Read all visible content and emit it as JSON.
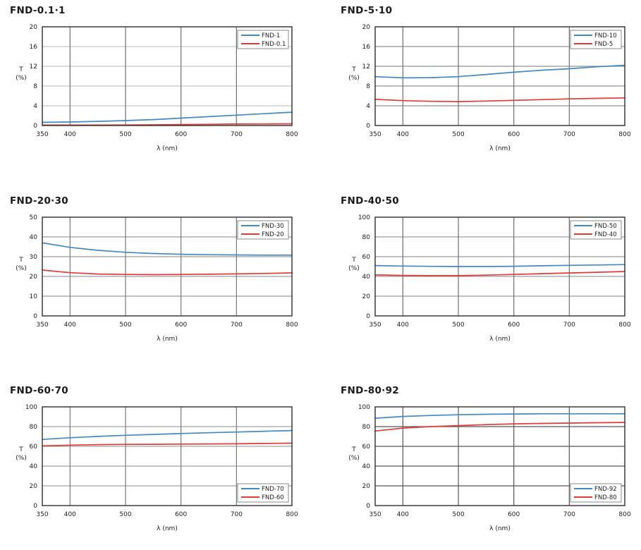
{
  "page": {
    "background": "#ffffff"
  },
  "style": {
    "frame_color": "#3a3a3a",
    "legend_border_color": "#8a8a8a",
    "legend_bg": "#ffffff",
    "blue": "#4488c0",
    "red": "#e03a3a"
  },
  "chart_data": [
    {
      "type": "line",
      "title": "FND-0.1·1",
      "xlabel": "λ (nm)",
      "ylabel": [
        "T",
        "(%)"
      ],
      "xlim": [
        350,
        800
      ],
      "xticks": [
        350,
        400,
        500,
        600,
        700,
        800
      ],
      "ylim": [
        0,
        20
      ],
      "yticks": [
        0,
        4,
        8,
        12,
        16,
        20
      ],
      "grid_color_h": "#c8c8c8",
      "grid_color_v": "#6f6f6f",
      "legend_position": "top-right",
      "x": [
        350,
        400,
        450,
        500,
        550,
        600,
        650,
        700,
        750,
        800
      ],
      "series": [
        {
          "name": "FND-1",
          "color": "#4488c0",
          "y": [
            0.65,
            0.72,
            0.85,
            1.0,
            1.2,
            1.5,
            1.8,
            2.1,
            2.4,
            2.7
          ]
        },
        {
          "name": "FND-0.1",
          "color": "#e03a3a",
          "y": [
            0.08,
            0.08,
            0.1,
            0.12,
            0.15,
            0.2,
            0.25,
            0.3,
            0.32,
            0.35
          ]
        }
      ]
    },
    {
      "type": "line",
      "title": "FND-5·10",
      "xlabel": "λ (nm)",
      "ylabel": [
        "T",
        "(%)"
      ],
      "xlim": [
        350,
        800
      ],
      "xticks": [
        350,
        400,
        500,
        600,
        700,
        800
      ],
      "ylim": [
        0,
        20
      ],
      "yticks": [
        0,
        4,
        8,
        12,
        16,
        20
      ],
      "grid_color_h": "#909090",
      "grid_color_v": "#6f6f6f",
      "legend_position": "top-right",
      "x": [
        350,
        400,
        450,
        500,
        550,
        600,
        650,
        700,
        750,
        800
      ],
      "series": [
        {
          "name": "FND-10",
          "color": "#4488c0",
          "y": [
            9.9,
            9.65,
            9.7,
            9.9,
            10.35,
            10.8,
            11.2,
            11.5,
            11.9,
            12.2
          ]
        },
        {
          "name": "FND-5",
          "color": "#e03a3a",
          "y": [
            5.3,
            5.05,
            4.9,
            4.85,
            4.95,
            5.1,
            5.25,
            5.4,
            5.5,
            5.6
          ]
        }
      ]
    },
    {
      "type": "line",
      "title": "FND-20·30",
      "xlabel": "λ (nm)",
      "ylabel": [
        "T",
        "(%)"
      ],
      "xlim": [
        350,
        800
      ],
      "xticks": [
        350,
        400,
        500,
        600,
        700,
        800
      ],
      "ylim": [
        0,
        50
      ],
      "yticks": [
        0,
        10,
        20,
        30,
        40,
        50
      ],
      "grid_color_h": "#9c9c9c",
      "grid_color_v": "#787878",
      "legend_position": "top-right",
      "x": [
        350,
        400,
        450,
        500,
        550,
        600,
        650,
        700,
        750,
        800
      ],
      "series": [
        {
          "name": "FND-30",
          "color": "#4488c0",
          "y": [
            37.0,
            34.7,
            33.2,
            32.2,
            31.6,
            31.2,
            31.0,
            30.9,
            30.8,
            30.8
          ]
        },
        {
          "name": "FND-20",
          "color": "#e03a3a",
          "y": [
            23.2,
            21.9,
            21.2,
            21.0,
            20.9,
            21.0,
            21.1,
            21.3,
            21.5,
            21.8
          ]
        }
      ]
    },
    {
      "type": "line",
      "title": "FND-40·50",
      "xlabel": "λ (nm)",
      "ylabel": [
        "T",
        "(%)"
      ],
      "xlim": [
        350,
        800
      ],
      "xticks": [
        350,
        400,
        500,
        600,
        700,
        800
      ],
      "ylim": [
        0,
        100
      ],
      "yticks": [
        0,
        20,
        40,
        60,
        80,
        100
      ],
      "grid_color_h": "#9c9c9c",
      "grid_color_v": "#6f6f6f",
      "legend_position": "top-right",
      "x": [
        350,
        400,
        450,
        500,
        550,
        600,
        650,
        700,
        750,
        800
      ],
      "series": [
        {
          "name": "FND-50",
          "color": "#4488c0",
          "y": [
            51.0,
            50.5,
            50.2,
            50.0,
            50.0,
            50.3,
            50.8,
            51.2,
            51.6,
            52.0
          ]
        },
        {
          "name": "FND-40",
          "color": "#e03a3a",
          "y": [
            41.5,
            41.0,
            40.8,
            40.8,
            41.3,
            42.0,
            42.8,
            43.5,
            44.2,
            45.0
          ]
        }
      ]
    },
    {
      "type": "line",
      "title": "FND-60·70",
      "xlabel": "λ (nm)",
      "ylabel": [
        "T",
        "(%)"
      ],
      "xlim": [
        350,
        800
      ],
      "xticks": [
        350,
        400,
        500,
        600,
        700,
        800
      ],
      "ylim": [
        0,
        100
      ],
      "yticks": [
        0,
        20,
        40,
        60,
        80,
        100
      ],
      "grid_color_h": "#a0a0a0",
      "grid_color_v": "#787878",
      "legend_position": "bottom-right",
      "x": [
        350,
        400,
        450,
        500,
        550,
        600,
        650,
        700,
        750,
        800
      ],
      "series": [
        {
          "name": "FND-70",
          "color": "#4488c0",
          "y": [
            67.0,
            68.7,
            70.1,
            71.2,
            72.1,
            73.0,
            73.8,
            74.5,
            75.3,
            76.0
          ]
        },
        {
          "name": "FND-60",
          "color": "#e03a3a",
          "y": [
            60.5,
            61.2,
            61.7,
            62.0,
            62.1,
            62.3,
            62.4,
            62.6,
            62.9,
            63.2
          ]
        }
      ]
    },
    {
      "type": "line",
      "title": "FND-80·92",
      "xlabel": "λ (nm)",
      "ylabel": [
        "T",
        "(%)"
      ],
      "xlim": [
        350,
        800
      ],
      "xticks": [
        350,
        400,
        500,
        600,
        700,
        800
      ],
      "ylim": [
        0,
        100
      ],
      "yticks": [
        0,
        20,
        40,
        60,
        80,
        100
      ],
      "grid_color_h": "#565656",
      "grid_color_v": "#565656",
      "legend_position": "bottom-right",
      "x": [
        350,
        400,
        450,
        500,
        550,
        600,
        650,
        700,
        750,
        800
      ],
      "series": [
        {
          "name": "FND-92",
          "color": "#4488c0",
          "y": [
            88.5,
            90.3,
            91.3,
            92.0,
            92.5,
            92.8,
            93.0,
            93.0,
            93.0,
            93.0
          ]
        },
        {
          "name": "FND-80",
          "color": "#e03a3a",
          "y": [
            75.5,
            78.5,
            80.0,
            81.0,
            82.0,
            82.8,
            83.2,
            83.6,
            83.9,
            84.2
          ]
        }
      ]
    }
  ]
}
